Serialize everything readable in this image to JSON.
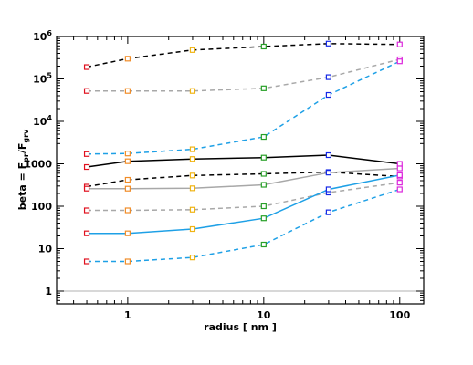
{
  "chart_data": {
    "type": "line",
    "x_scale": "log",
    "y_scale": "log",
    "xlim": [
      0.3,
      150
    ],
    "ylim": [
      0.5,
      1000000
    ],
    "xlabel": "radius [ nm ]",
    "ylabel": "beta = F",
    "ylabel_sub1": "pr",
    "ylabel_mid": "/F",
    "ylabel_sub2": "grv",
    "x_ticks": [
      {
        "value": 1,
        "label": "1"
      },
      {
        "value": 10,
        "label": "10"
      },
      {
        "value": 100,
        "label": "100"
      }
    ],
    "y_ticks": [
      {
        "value": 1,
        "label": "1"
      },
      {
        "value": 10,
        "label": "10"
      },
      {
        "value": 100,
        "label": "100"
      },
      {
        "value": 1000,
        "label": "1000"
      },
      {
        "value": 10000,
        "label": "10",
        "exp": "4"
      },
      {
        "value": 100000,
        "label": "10",
        "exp": "5"
      },
      {
        "value": 1000000,
        "label": "10",
        "exp": "6"
      }
    ],
    "reference_line": 1,
    "x": [
      0.5,
      1,
      3,
      10,
      30,
      100
    ],
    "marker_colors": [
      "#e0101e",
      "#f08c28",
      "#f0b414",
      "#28a028",
      "#1428e6",
      "#dc28dc"
    ],
    "series": [
      {
        "color": "#000000",
        "dash": "dashed",
        "values": [
          190000,
          300000,
          480000,
          580000,
          680000,
          650000
        ]
      },
      {
        "color": "#a8a8a8",
        "dash": "dashed",
        "values": [
          52000,
          52000,
          52000,
          60000,
          110000,
          290000
        ]
      },
      {
        "color": "#1ea0e6",
        "dash": "dashed",
        "values": [
          1700,
          1750,
          2200,
          4300,
          42000,
          260000
        ]
      },
      {
        "color": "#000000",
        "dash": "solid",
        "values": [
          840,
          1150,
          1300,
          1400,
          1600,
          1000
        ]
      },
      {
        "color": "#000000",
        "dash": "dashed",
        "values": [
          290,
          420,
          530,
          580,
          640,
          500
        ]
      },
      {
        "color": "#a8a8a8",
        "dash": "solid",
        "values": [
          260,
          260,
          265,
          320,
          620,
          780
        ]
      },
      {
        "color": "#a8a8a8",
        "dash": "dashed",
        "values": [
          80,
          80,
          83,
          100,
          210,
          360
        ]
      },
      {
        "color": "#1ea0e6",
        "dash": "solid",
        "values": [
          23,
          23,
          29,
          52,
          250,
          540
        ]
      },
      {
        "color": "#1ea0e6",
        "dash": "dashed",
        "values": [
          5,
          5,
          6.2,
          12.5,
          72,
          250
        ]
      }
    ]
  }
}
